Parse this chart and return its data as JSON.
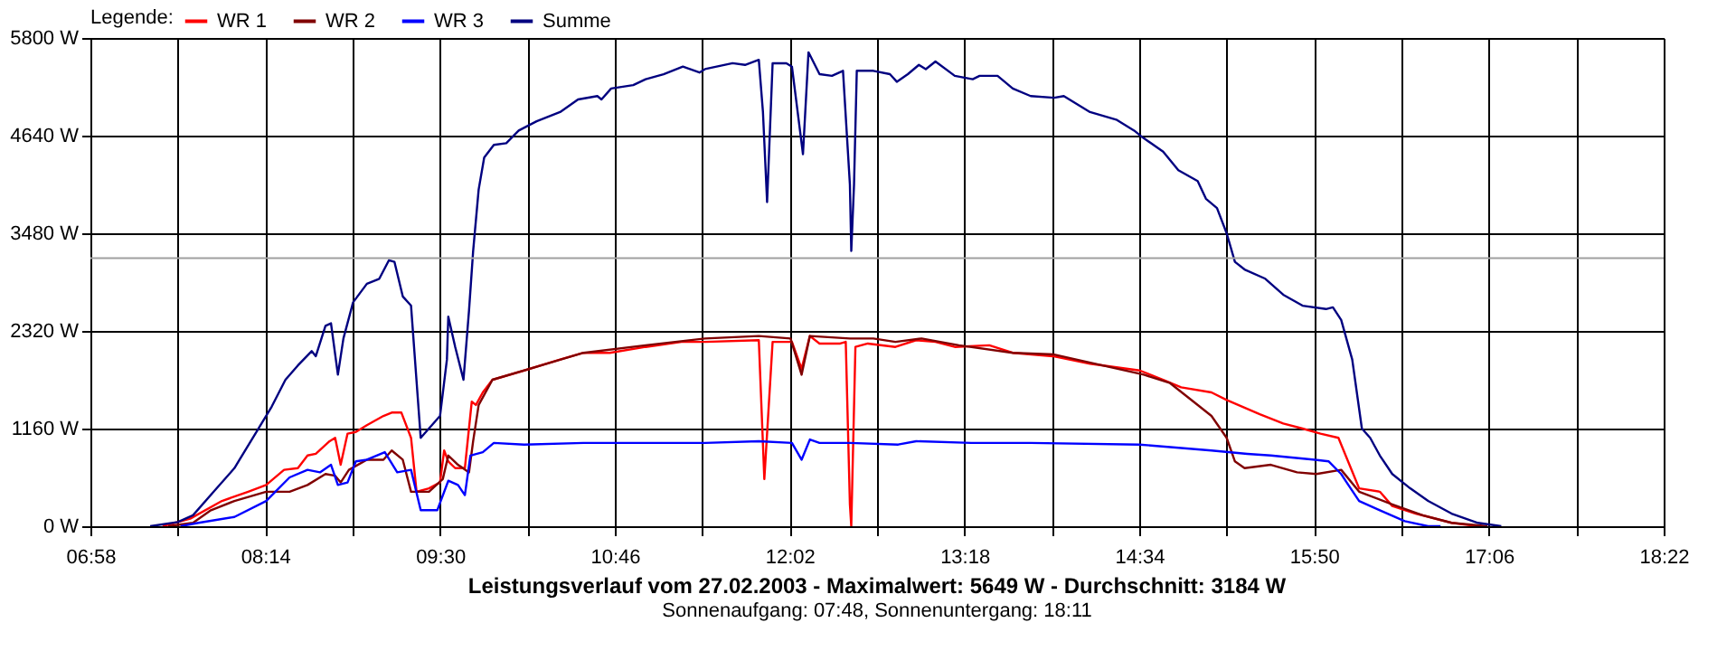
{
  "chart_data": {
    "type": "line",
    "title": "Leistungsverlauf vom 27.02.2003 - Maximalwert: 5649 W - Durchschnitt: 3184 W",
    "subtitle": "Sonnenaufgang: 07:48, Sonnenuntergang: 18:11",
    "legend_title": "Legende:",
    "legend": "top left",
    "grid": true,
    "xlim": [
      6.9667,
      18.3667
    ],
    "xticks": [
      {
        "value": 6.9667,
        "label": "06:58"
      },
      {
        "value": 7.6,
        "label": null
      },
      {
        "value": 8.2333,
        "label": "08:14"
      },
      {
        "value": 8.8667,
        "label": null
      },
      {
        "value": 9.5,
        "label": "09:30"
      },
      {
        "value": 10.1333,
        "label": null
      },
      {
        "value": 10.7667,
        "label": "10:46"
      },
      {
        "value": 11.4,
        "label": null
      },
      {
        "value": 12.0333,
        "label": "12:02"
      },
      {
        "value": 12.6667,
        "label": null
      },
      {
        "value": 13.3,
        "label": "13:18"
      },
      {
        "value": 13.9333,
        "label": null
      },
      {
        "value": 14.5667,
        "label": "14:34"
      },
      {
        "value": 15.2,
        "label": null
      },
      {
        "value": 15.8333,
        "label": "15:50"
      },
      {
        "value": 16.4667,
        "label": null
      },
      {
        "value": 17.1,
        "label": "17:06"
      },
      {
        "value": 17.7333,
        "label": null
      },
      {
        "value": 18.3667,
        "label": "18:22"
      }
    ],
    "ylim": [
      0,
      5800
    ],
    "yticks": [
      {
        "value": 0,
        "label": "0 W"
      },
      {
        "value": 1160,
        "label": "1160 W"
      },
      {
        "value": 2320,
        "label": "2320 W"
      },
      {
        "value": 3480,
        "label": "3480 W"
      },
      {
        "value": 4640,
        "label": "4640 W"
      },
      {
        "value": 5800,
        "label": "5800 W"
      }
    ],
    "ref_lines": [
      {
        "axis": "y",
        "value": 3184,
        "color": "#a0a0a0"
      }
    ],
    "series": [
      {
        "name": "WR 1",
        "color": "#ff0000",
        "x": [
          7.49,
          7.69,
          7.92,
          8.11,
          8.24,
          8.37,
          8.47,
          8.54,
          8.6,
          8.7,
          8.74,
          8.78,
          8.83,
          8.89,
          8.97,
          9.09,
          9.15,
          9.22,
          9.29,
          9.33,
          9.42,
          9.5,
          9.53,
          9.56,
          9.61,
          9.68,
          9.73,
          9.76,
          9.81,
          9.88,
          10.11,
          10.37,
          10.54,
          10.73,
          10.99,
          11.25,
          11.42,
          11.81,
          11.85,
          11.91,
          12.05,
          12.12,
          12.18,
          12.25,
          12.4,
          12.44,
          12.47,
          12.48,
          12.51,
          12.6,
          12.8,
          12.95,
          13.09,
          13.23,
          13.48,
          13.65,
          13.94,
          14.21,
          14.57,
          14.74,
          14.87,
          15.09,
          15.2,
          15.44,
          15.61,
          15.75,
          15.88,
          16.01,
          16.1,
          16.16,
          16.31,
          16.4,
          16.57,
          16.83,
          17.02
        ],
        "values": [
          0,
          90,
          300,
          410,
          490,
          670,
          690,
          840,
          860,
          1010,
          1050,
          730,
          1100,
          1120,
          1200,
          1310,
          1350,
          1350,
          1050,
          410,
          450,
          520,
          900,
          770,
          690,
          690,
          1480,
          1440,
          1590,
          1740,
          1850,
          1980,
          2060,
          2060,
          2130,
          2190,
          2190,
          2210,
          560,
          2190,
          2190,
          1870,
          2260,
          2170,
          2170,
          2190,
          260,
          0,
          2130,
          2170,
          2130,
          2210,
          2190,
          2130,
          2150,
          2060,
          2020,
          1930,
          1850,
          1740,
          1650,
          1590,
          1500,
          1330,
          1220,
          1160,
          1100,
          1050,
          690,
          450,
          410,
          240,
          150,
          40,
          0
        ]
      },
      {
        "name": "WR 2",
        "color": "#800000",
        "x": [
          7.53,
          7.71,
          7.84,
          8.01,
          8.24,
          8.41,
          8.54,
          8.67,
          8.74,
          8.78,
          8.84,
          8.97,
          9.09,
          9.15,
          9.23,
          9.29,
          9.42,
          9.52,
          9.56,
          9.63,
          9.71,
          9.74,
          9.78,
          9.88,
          10.15,
          10.54,
          10.99,
          11.42,
          11.81,
          12.04,
          12.12,
          12.18,
          12.47,
          12.64,
          12.8,
          12.99,
          13.26,
          13.65,
          13.95,
          14.3,
          14.6,
          14.79,
          14.96,
          15.09,
          15.2,
          15.26,
          15.33,
          15.52,
          15.71,
          15.85,
          16.03,
          16.16,
          16.4,
          16.62,
          16.83,
          17.09
        ],
        "values": [
          0,
          40,
          190,
          300,
          410,
          410,
          490,
          620,
          600,
          520,
          670,
          790,
          790,
          900,
          790,
          410,
          410,
          560,
          840,
          730,
          640,
          1010,
          1440,
          1740,
          1870,
          2060,
          2150,
          2230,
          2260,
          2230,
          1800,
          2260,
          2230,
          2230,
          2190,
          2230,
          2150,
          2060,
          2040,
          1910,
          1800,
          1700,
          1480,
          1310,
          1050,
          770,
          690,
          730,
          640,
          620,
          670,
          410,
          260,
          130,
          40,
          0
        ]
      },
      {
        "name": "WR 3",
        "color": "#0000ff",
        "x": [
          7.62,
          7.75,
          8.01,
          8.24,
          8.41,
          8.54,
          8.63,
          8.71,
          8.76,
          8.83,
          8.89,
          8.97,
          9.1,
          9.19,
          9.29,
          9.36,
          9.48,
          9.56,
          9.63,
          9.68,
          9.72,
          9.81,
          9.89,
          10.11,
          10.54,
          10.99,
          11.42,
          11.81,
          12.05,
          12.12,
          12.18,
          12.25,
          12.47,
          12.82,
          12.95,
          13.35,
          13.78,
          14.57,
          15.09,
          15.35,
          15.52,
          15.84,
          15.94,
          16.03,
          16.07,
          16.16,
          16.31,
          16.49,
          16.66,
          16.75
        ],
        "values": [
          0,
          40,
          110,
          300,
          580,
          670,
          640,
          730,
          490,
          520,
          770,
          790,
          880,
          640,
          670,
          190,
          190,
          540,
          490,
          370,
          840,
          880,
          990,
          970,
          990,
          990,
          990,
          1010,
          990,
          790,
          1030,
          990,
          990,
          970,
          1010,
          990,
          990,
          970,
          900,
          860,
          840,
          790,
          770,
          620,
          520,
          300,
          190,
          60,
          0,
          0
        ]
      },
      {
        "name": "Summe",
        "color": "#000080",
        "x": [
          7.4,
          7.6,
          7.71,
          7.86,
          8.01,
          8.17,
          8.28,
          8.38,
          8.47,
          8.57,
          8.6,
          8.67,
          8.71,
          8.76,
          8.8,
          8.87,
          8.97,
          9.06,
          9.13,
          9.17,
          9.23,
          9.29,
          9.36,
          9.5,
          9.55,
          9.56,
          9.61,
          9.67,
          9.71,
          9.74,
          9.78,
          9.82,
          9.89,
          9.98,
          10.07,
          10.2,
          10.37,
          10.5,
          10.64,
          10.67,
          10.74,
          10.9,
          10.99,
          11.12,
          11.26,
          11.38,
          11.42,
          11.62,
          11.71,
          11.81,
          11.84,
          11.87,
          11.91,
          12.01,
          12.05,
          12.12,
          12.13,
          12.17,
          12.25,
          12.34,
          12.42,
          12.47,
          12.48,
          12.5,
          12.52,
          12.64,
          12.76,
          12.81,
          12.89,
          12.97,
          13.02,
          13.09,
          13.23,
          13.36,
          13.41,
          13.54,
          13.65,
          13.78,
          13.95,
          14.02,
          14.21,
          14.4,
          14.53,
          14.59,
          14.74,
          14.85,
          14.99,
          15.05,
          15.13,
          15.2,
          15.26,
          15.33,
          15.48,
          15.61,
          15.75,
          15.92,
          15.97,
          16.03,
          16.11,
          16.18,
          16.24,
          16.31,
          16.4,
          16.53,
          16.66,
          16.83,
          17.02,
          17.19
        ],
        "values": [
          0,
          50,
          130,
          410,
          690,
          1120,
          1420,
          1740,
          1910,
          2080,
          2020,
          2380,
          2410,
          1800,
          2230,
          2660,
          2880,
          2940,
          3160,
          3140,
          2730,
          2620,
          1050,
          1310,
          1980,
          2490,
          2130,
          1740,
          2560,
          3270,
          4000,
          4380,
          4530,
          4550,
          4700,
          4810,
          4920,
          5070,
          5110,
          5070,
          5200,
          5240,
          5310,
          5370,
          5460,
          5390,
          5430,
          5500,
          5480,
          5540,
          4920,
          3850,
          5500,
          5500,
          5460,
          4550,
          4420,
          5630,
          5370,
          5350,
          5410,
          4060,
          3270,
          4060,
          5410,
          5410,
          5370,
          5280,
          5370,
          5480,
          5430,
          5520,
          5350,
          5310,
          5350,
          5350,
          5200,
          5110,
          5090,
          5110,
          4920,
          4830,
          4700,
          4620,
          4450,
          4230,
          4100,
          3890,
          3780,
          3480,
          3140,
          3050,
          2940,
          2750,
          2620,
          2580,
          2600,
          2450,
          1980,
          1160,
          1050,
          840,
          620,
          450,
          300,
          150,
          40,
          0
        ]
      }
    ]
  }
}
